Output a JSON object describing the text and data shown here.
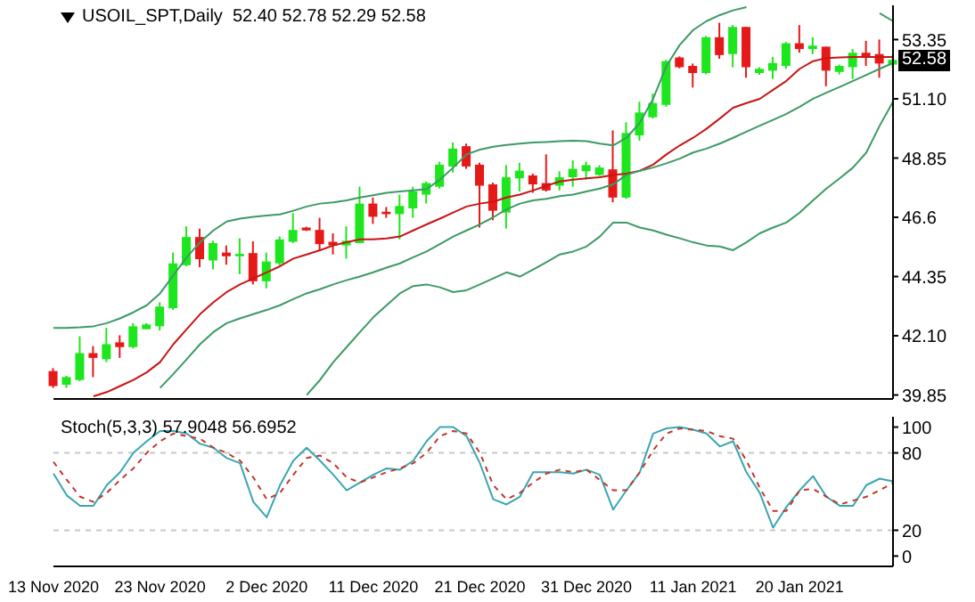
{
  "chart_data": [
    {
      "type": "candlestick",
      "title": "USOIL_SPT,Daily  52.40 52.78 52.29 52.58",
      "categories": [
        null,
        null,
        null,
        null,
        null,
        null,
        null,
        null,
        null,
        null,
        null,
        null,
        null,
        null,
        null,
        null,
        null,
        null,
        null,
        null,
        null,
        null,
        null,
        null,
        null,
        null,
        null,
        null,
        null,
        null,
        null,
        null,
        null,
        null,
        null,
        null,
        null,
        null,
        null,
        null,
        null,
        null,
        null,
        null,
        null,
        null,
        null,
        null,
        null,
        null,
        null,
        null,
        null,
        null,
        null,
        null,
        null,
        null,
        null,
        null,
        null,
        null,
        null,
        null
      ],
      "ohlc": [
        [
          40.76,
          40.87,
          40.12,
          40.19
        ],
        [
          40.24,
          40.58,
          40.12,
          40.53
        ],
        [
          40.42,
          42.08,
          40.37,
          41.44
        ],
        [
          41.44,
          41.71,
          40.53,
          41.26
        ],
        [
          41.21,
          42.4,
          41.1,
          41.78
        ],
        [
          41.85,
          42.12,
          41.26,
          41.67
        ],
        [
          41.67,
          42.58,
          41.62,
          42.46
        ],
        [
          42.35,
          42.58,
          42.35,
          42.53
        ],
        [
          42.46,
          43.37,
          42.3,
          43.21
        ],
        [
          43.15,
          45.26,
          43.08,
          44.85
        ],
        [
          44.78,
          46.26,
          44.74,
          45.85
        ],
        [
          45.85,
          46.17,
          44.71,
          45.01
        ],
        [
          44.96,
          45.71,
          44.62,
          45.62
        ],
        [
          45.26,
          45.53,
          44.8,
          45.12
        ],
        [
          45.12,
          45.8,
          44.44,
          45.21
        ],
        [
          45.24,
          45.69,
          44.05,
          44.17
        ],
        [
          44.17,
          45.26,
          43.9,
          44.92
        ],
        [
          44.85,
          45.87,
          44.78,
          45.76
        ],
        [
          45.67,
          46.76,
          45.62,
          46.12
        ],
        [
          46.21,
          46.24,
          46.08,
          46.1
        ],
        [
          46.12,
          46.58,
          45.35,
          45.58
        ],
        [
          45.67,
          45.99,
          45.19,
          45.53
        ],
        [
          45.53,
          46.26,
          45.03,
          45.71
        ],
        [
          45.62,
          47.76,
          45.62,
          47.12
        ],
        [
          47.12,
          47.35,
          46.35,
          46.62
        ],
        [
          46.81,
          46.99,
          46.58,
          46.72
        ],
        [
          46.72,
          47.46,
          45.76,
          47.03
        ],
        [
          46.94,
          47.76,
          46.58,
          47.58
        ],
        [
          47.46,
          47.96,
          47.12,
          47.9
        ],
        [
          47.76,
          48.71,
          47.69,
          48.6
        ],
        [
          48.53,
          49.44,
          48.3,
          49.21
        ],
        [
          49.3,
          49.4,
          48.44,
          48.53
        ],
        [
          48.6,
          48.67,
          46.21,
          47.8
        ],
        [
          47.85,
          47.92,
          46.49,
          46.85
        ],
        [
          46.78,
          48.58,
          46.17,
          48.12
        ],
        [
          48.08,
          48.67,
          47.58,
          48.37
        ],
        [
          48.19,
          48.26,
          47.53,
          47.85
        ],
        [
          47.9,
          48.99,
          47.58,
          47.62
        ],
        [
          47.8,
          48.35,
          47.62,
          48.12
        ],
        [
          48.12,
          48.76,
          47.76,
          48.44
        ],
        [
          48.35,
          48.71,
          48.03,
          48.58
        ],
        [
          48.21,
          48.58,
          48.17,
          48.49
        ],
        [
          48.42,
          49.9,
          47.17,
          47.35
        ],
        [
          47.35,
          50.21,
          47.3,
          49.8
        ],
        [
          49.71,
          50.99,
          49.51,
          50.58
        ],
        [
          50.4,
          51.3,
          50.35,
          50.94
        ],
        [
          50.87,
          52.58,
          50.8,
          52.53
        ],
        [
          52.67,
          52.71,
          52.26,
          52.3
        ],
        [
          52.35,
          52.44,
          51.53,
          52.08
        ],
        [
          52.08,
          53.49,
          52.03,
          53.44
        ],
        [
          53.44,
          53.99,
          52.62,
          52.76
        ],
        [
          52.8,
          53.9,
          52.3,
          53.83
        ],
        [
          53.83,
          53.83,
          51.9,
          52.3
        ],
        [
          52.08,
          52.3,
          52.01,
          52.24
        ],
        [
          52.17,
          52.69,
          51.85,
          52.46
        ],
        [
          52.35,
          53.26,
          52.24,
          53.21
        ],
        [
          53.21,
          53.9,
          52.85,
          52.99
        ],
        [
          52.99,
          53.44,
          52.8,
          53.12
        ],
        [
          53.08,
          53.08,
          51.58,
          52.17
        ],
        [
          52.12,
          52.4,
          52.03,
          52.35
        ],
        [
          52.3,
          52.99,
          51.85,
          52.85
        ],
        [
          52.85,
          53.3,
          52.35,
          52.67
        ],
        [
          52.8,
          53.35,
          51.9,
          52.44
        ],
        [
          52.4,
          52.78,
          52.29,
          52.58
        ]
      ],
      "colors": [
        "#e61919",
        "#1ee61e",
        "#1ee61e",
        "#e61919",
        "#1ee61e",
        "#e61919",
        "#1ee61e",
        "#1ee61e",
        "#1ee61e",
        "#1ee61e",
        "#1ee61e",
        "#e61919",
        "#1ee61e",
        "#e61919",
        "#1ee61e",
        "#e61919",
        "#1ee61e",
        "#1ee61e",
        "#1ee61e",
        "#e61919",
        "#e61919",
        "#e61919",
        "#1ee61e",
        "#1ee61e",
        "#e61919",
        "#e61919",
        "#1ee61e",
        "#1ee61e",
        "#1ee61e",
        "#1ee61e",
        "#1ee61e",
        "#e61919",
        "#e61919",
        "#e61919",
        "#1ee61e",
        "#1ee61e",
        "#e61919",
        "#e61919",
        "#1ee61e",
        "#1ee61e",
        "#1ee61e",
        "#1ee61e",
        "#e61919",
        "#1ee61e",
        "#1ee61e",
        "#1ee61e",
        "#1ee61e",
        "#e61919",
        "#e61919",
        "#1ee61e",
        "#e61919",
        "#1ee61e",
        "#e61919",
        "#1ee61e",
        "#1ee61e",
        "#1ee61e",
        "#e61919",
        "#1ee61e",
        "#e61919",
        "#1ee61e",
        "#1ee61e",
        "#e61919",
        "#e61919",
        "#1ee61e"
      ],
      "series": [
        {
          "type": "line",
          "color": "#3c9a64",
          "values": [
            42.4,
            42.4,
            42.42,
            42.46,
            42.58,
            42.76,
            42.99,
            43.26,
            43.71,
            44.4,
            45.08,
            45.65,
            46.1,
            46.44,
            46.55,
            46.62,
            46.67,
            46.71,
            46.85,
            47.01,
            47.12,
            47.17,
            47.24,
            47.35,
            47.44,
            47.53,
            47.58,
            47.62,
            47.67,
            48.03,
            48.49,
            48.99,
            49.17,
            49.28,
            49.35,
            49.4,
            49.44,
            49.46,
            49.49,
            49.51,
            49.49,
            49.4,
            49.33,
            49.62,
            50.19,
            51.1,
            52.35,
            53.15,
            53.71,
            54.05,
            54.28,
            54.46,
            54.58,
            null,
            null,
            null,
            null,
            null,
            null,
            null,
            null,
            null,
            54.35,
            54.05
          ]
        },
        {
          "type": "line",
          "color": "#c81414",
          "values": [
            null,
            null,
            null,
            39.8,
            39.96,
            40.19,
            40.42,
            40.71,
            41.1,
            41.78,
            42.35,
            42.92,
            43.37,
            43.76,
            44.05,
            44.28,
            44.51,
            44.74,
            45.03,
            45.19,
            45.35,
            45.53,
            45.65,
            45.76,
            45.76,
            45.8,
            45.87,
            46.1,
            46.33,
            46.55,
            46.78,
            47.01,
            47.12,
            47.19,
            47.35,
            47.46,
            47.62,
            47.8,
            47.96,
            48.03,
            48.08,
            48.12,
            48.21,
            48.26,
            48.37,
            48.6,
            48.99,
            49.33,
            49.62,
            49.96,
            50.35,
            50.76,
            50.94,
            51.1,
            51.44,
            51.78,
            52.24,
            52.53,
            52.65,
            52.67,
            52.69,
            52.69,
            52.69,
            52.69
          ]
        },
        {
          "type": "line",
          "color": "#3c9a64",
          "values": [
            null,
            null,
            null,
            null,
            null,
            null,
            null,
            null,
            40.12,
            40.65,
            41.21,
            41.78,
            42.24,
            42.58,
            42.76,
            42.92,
            43.08,
            43.26,
            43.49,
            43.71,
            43.87,
            44.05,
            44.21,
            44.35,
            44.51,
            44.69,
            44.85,
            45.08,
            45.3,
            45.58,
            45.87,
            46.1,
            46.33,
            46.6,
            46.9,
            47.12,
            47.24,
            47.3,
            47.4,
            47.46,
            47.58,
            47.69,
            47.85,
            48.21,
            48.37,
            48.49,
            48.65,
            48.83,
            49.06,
            49.21,
            49.4,
            49.62,
            49.85,
            50.08,
            50.3,
            50.53,
            50.8,
            51.1,
            51.33,
            51.55,
            51.78,
            52.01,
            52.24,
            52.46
          ]
        },
        {
          "type": "line",
          "color": "#3c9a64",
          "values": [
            null,
            null,
            null,
            null,
            null,
            null,
            null,
            null,
            null,
            null,
            null,
            null,
            null,
            null,
            null,
            null,
            null,
            null,
            null,
            39.85,
            40.42,
            41.1,
            41.67,
            42.24,
            42.8,
            43.26,
            43.71,
            43.99,
            44.05,
            43.94,
            43.76,
            43.83,
            44.05,
            44.28,
            44.51,
            44.35,
            44.62,
            44.9,
            45.19,
            45.3,
            45.49,
            45.87,
            46.4,
            46.4,
            46.21,
            46.1,
            45.94,
            45.8,
            45.65,
            45.53,
            45.49,
            45.35,
            45.65,
            45.99,
            46.21,
            46.4,
            46.78,
            47.24,
            47.69,
            48.08,
            48.49,
            49.06,
            50.08,
            50.99
          ]
        }
      ],
      "ylim": [
        39.7,
        54.65
      ],
      "yticks": [
        39.85,
        {
          "value": 42.1,
          "label": "42.10"
        },
        44.35,
        46.6,
        48.85,
        {
          "value": 51.1,
          "label": "51.10"
        },
        53.35
      ],
      "tick_labels": "y",
      "annotations": [
        {
          "text": "52.58",
          "y": 52.58
        }
      ]
    },
    {
      "type": "line",
      "title": "Stoch(5,3,3) 57.9048 56.6952",
      "categories": [
        "13 Nov 2020",
        null,
        null,
        null,
        null,
        null,
        null,
        null,
        "23 Nov 2020",
        null,
        null,
        null,
        null,
        null,
        null,
        null,
        "2 Dec 2020",
        null,
        null,
        null,
        null,
        null,
        null,
        null,
        "11 Dec 2020",
        null,
        null,
        null,
        null,
        null,
        null,
        null,
        "21 Dec 2020",
        null,
        null,
        null,
        null,
        null,
        null,
        null,
        "31 Dec 2020",
        null,
        null,
        null,
        null,
        null,
        null,
        null,
        "11 Jan 2021",
        null,
        null,
        null,
        null,
        null,
        null,
        null,
        "20 Jan 2021",
        null,
        null,
        null,
        null,
        null,
        null,
        null
      ],
      "series": [
        {
          "color": "#3aa6b0",
          "values": [
            64,
            47,
            39,
            39,
            55,
            65,
            80,
            89,
            97,
            97,
            95,
            87,
            84,
            76,
            72,
            42,
            30,
            55,
            74,
            84,
            74,
            63,
            51,
            57,
            63,
            68,
            67,
            74,
            89,
            100,
            100,
            93,
            72,
            44,
            40,
            46,
            65,
            65,
            65,
            64,
            67,
            63,
            36,
            51,
            65,
            95,
            99,
            100,
            98,
            95,
            85,
            89,
            65,
            49,
            22,
            38,
            51,
            62,
            46,
            39,
            39,
            55,
            60,
            57.9048
          ]
        },
        {
          "color": "#c0392b",
          "line_style": "dashed",
          "values": [
            73,
            59,
            46,
            42,
            49,
            59,
            68,
            80,
            89,
            95,
            93,
            91,
            84,
            80,
            74,
            61,
            44,
            49,
            63,
            76,
            78,
            72,
            61,
            57,
            61,
            65,
            68,
            72,
            80,
            93,
            97,
            95,
            80,
            55,
            44,
            49,
            57,
            64,
            67,
            65,
            67,
            59,
            51,
            51,
            65,
            82,
            95,
            99,
            98,
            97,
            93,
            91,
            74,
            53,
            35,
            35,
            51,
            52,
            46,
            40,
            43,
            46,
            51,
            56.6952
          ]
        }
      ],
      "ylim": [
        -8,
        108
      ],
      "yticks": [
        0,
        20,
        80,
        100
      ],
      "ref_lines": [
        {
          "axis": "y",
          "value": 20,
          "color": "#c8c8c8",
          "line_style": "dashed"
        },
        {
          "axis": "y",
          "value": 80,
          "color": "#c8c8c8",
          "line_style": "dashed"
        }
      ]
    }
  ]
}
